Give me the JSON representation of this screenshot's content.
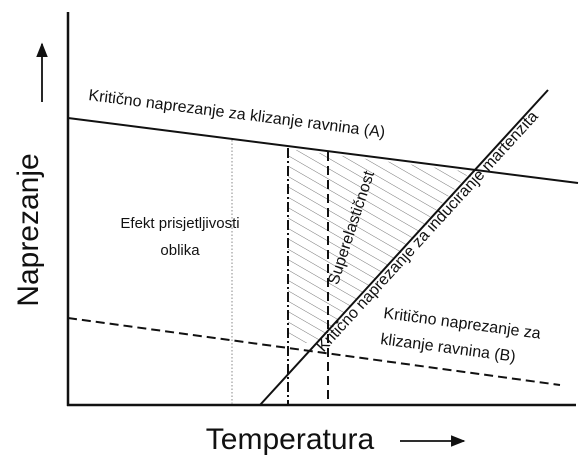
{
  "y_axis_label": "Naprezanje",
  "x_axis_label": "Temperatura",
  "line_a_label": "Kritično naprezanje za klizanje ravnina (A)",
  "line_b_label": [
    "Kritično naprezanje za",
    "klizanje ravnina (B)"
  ],
  "martensite_label": "Kritično naprezanje za induciranje martenzita",
  "region_shape_memory": [
    "Efekt prisjetljivosti",
    "oblika"
  ],
  "region_superelasticity": "Superelastičnost"
}
